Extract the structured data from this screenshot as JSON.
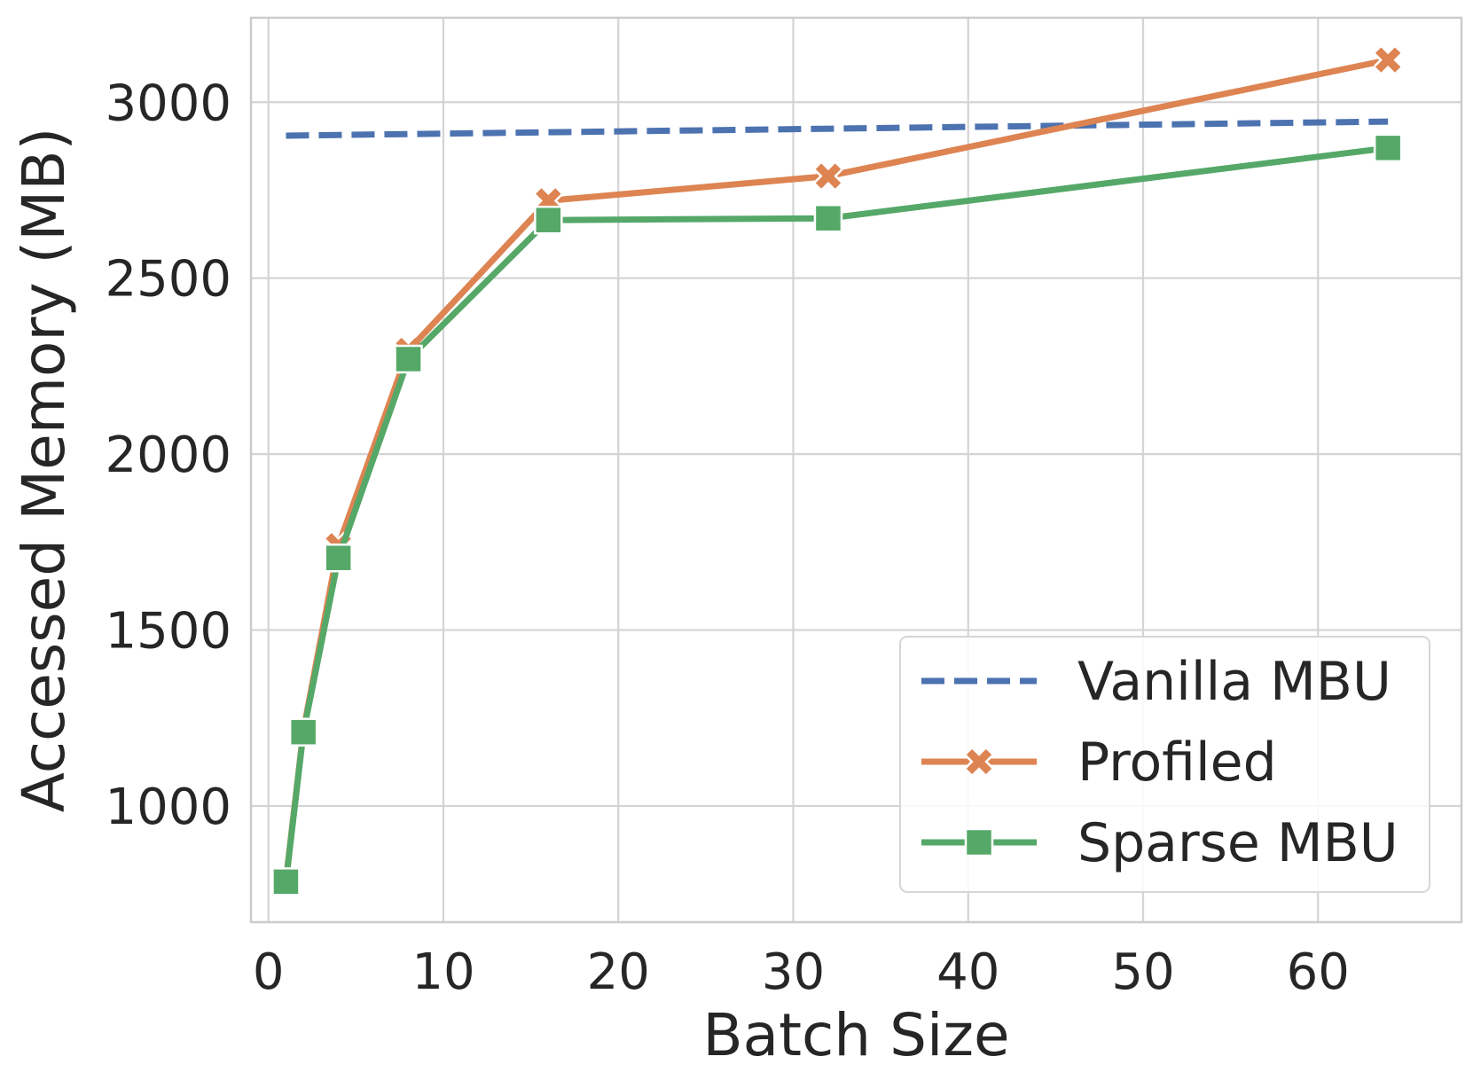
{
  "chart_data": {
    "type": "line",
    "title": "",
    "xlabel": "Batch Size",
    "ylabel": "Accessed Memory (MB)",
    "xlim": [
      -1,
      68.2
    ],
    "ylim": [
      670,
      3240
    ],
    "xticks": [
      0,
      10,
      20,
      30,
      40,
      50,
      60
    ],
    "yticks": [
      1000,
      1500,
      2000,
      2500,
      3000
    ],
    "xtick_labels": [
      "0",
      "10",
      "20",
      "30",
      "40",
      "50",
      "60"
    ],
    "ytick_labels": [
      "1000",
      "1500",
      "2000",
      "2500",
      "3000"
    ],
    "grid": true,
    "legend_position": "lower-right",
    "series": [
      {
        "name": "Vanilla MBU",
        "color": "#4c72b0",
        "style": "dashed",
        "marker": "none",
        "x": [
          1,
          64
        ],
        "y": [
          2905,
          2945
        ]
      },
      {
        "name": "Profiled",
        "color": "#dd8452",
        "style": "solid",
        "marker": "x",
        "x": [
          1,
          2,
          4,
          8,
          16,
          32,
          64
        ],
        "y": [
          790,
          1215,
          1740,
          2295,
          2720,
          2790,
          3120
        ]
      },
      {
        "name": "Sparse MBU",
        "color": "#55a868",
        "style": "solid",
        "marker": "square",
        "x": [
          1,
          2,
          4,
          8,
          16,
          32,
          64
        ],
        "y": [
          785,
          1210,
          1705,
          2270,
          2665,
          2670,
          2870
        ]
      }
    ]
  }
}
